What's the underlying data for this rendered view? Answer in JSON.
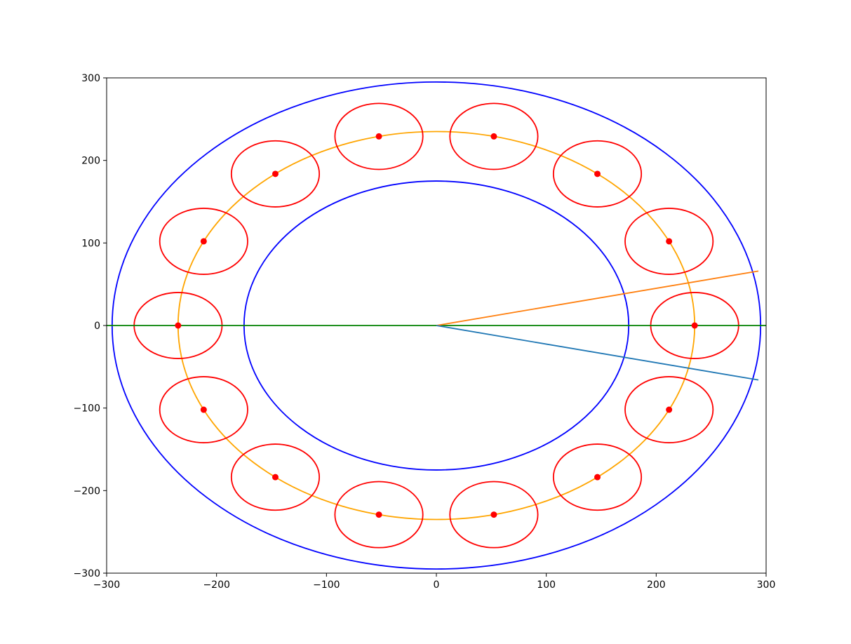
{
  "chart_data": {
    "type": "line",
    "title": "",
    "xlabel": "",
    "ylabel": "",
    "xlim": [
      -300,
      300
    ],
    "ylim": [
      -300,
      300
    ],
    "grid": false,
    "legend": "none",
    "x_ticks": [
      {
        "value": -300,
        "label": "−300"
      },
      {
        "value": -200,
        "label": "−200"
      },
      {
        "value": -100,
        "label": "−100"
      },
      {
        "value": 0,
        "label": "0"
      },
      {
        "value": 100,
        "label": "100"
      },
      {
        "value": 200,
        "label": "200"
      },
      {
        "value": 300,
        "label": "300"
      }
    ],
    "y_ticks": [
      {
        "value": -300,
        "label": "−300"
      },
      {
        "value": -200,
        "label": "−200"
      },
      {
        "value": -100,
        "label": "−100"
      },
      {
        "value": 0,
        "label": "0"
      },
      {
        "value": 100,
        "label": "100"
      },
      {
        "value": 200,
        "label": "200"
      },
      {
        "value": 300,
        "label": "300"
      }
    ],
    "rings": [
      {
        "center": [
          0,
          0
        ],
        "radius": 295,
        "color": "#0000ff"
      },
      {
        "center": [
          0,
          0
        ],
        "radius": 175,
        "color": "#0000ff"
      },
      {
        "center": [
          0,
          0
        ],
        "radius": 235,
        "color": "#ffa500"
      }
    ],
    "small_circles": {
      "radius": 40,
      "color": "#ff0000",
      "centers": [
        [
          235,
          0
        ],
        [
          211.7,
          102.0
        ],
        [
          146.5,
          183.7
        ],
        [
          52.3,
          229.1
        ],
        [
          -52.3,
          229.1
        ],
        [
          -146.5,
          183.7
        ],
        [
          -211.7,
          102.0
        ],
        [
          -235,
          0
        ],
        [
          -211.7,
          -102.0
        ],
        [
          -146.5,
          -183.7
        ],
        [
          -52.3,
          -229.1
        ],
        [
          52.3,
          -229.1
        ],
        [
          146.5,
          -183.7
        ],
        [
          211.7,
          -102.0
        ]
      ]
    },
    "points": {
      "color": "#ff0000",
      "coords": [
        [
          235,
          0
        ],
        [
          211.7,
          102.0
        ],
        [
          146.5,
          183.7
        ],
        [
          52.3,
          229.1
        ],
        [
          -52.3,
          229.1
        ],
        [
          -146.5,
          183.7
        ],
        [
          -211.7,
          102.0
        ],
        [
          -235,
          0
        ],
        [
          -211.7,
          -102.0
        ],
        [
          -146.5,
          -183.7
        ],
        [
          -52.3,
          -229.1
        ],
        [
          52.3,
          -229.1
        ],
        [
          146.5,
          -183.7
        ],
        [
          211.7,
          -102.0
        ]
      ]
    },
    "series": [
      {
        "color": "#008000",
        "x": [
          -300,
          300
        ],
        "y": [
          0,
          0
        ]
      },
      {
        "color": "#ff7f0e",
        "x": [
          0,
          293
        ],
        "y": [
          0,
          66
        ]
      },
      {
        "color": "#1f77b4",
        "x": [
          0,
          293
        ],
        "y": [
          0,
          -66
        ]
      }
    ]
  }
}
